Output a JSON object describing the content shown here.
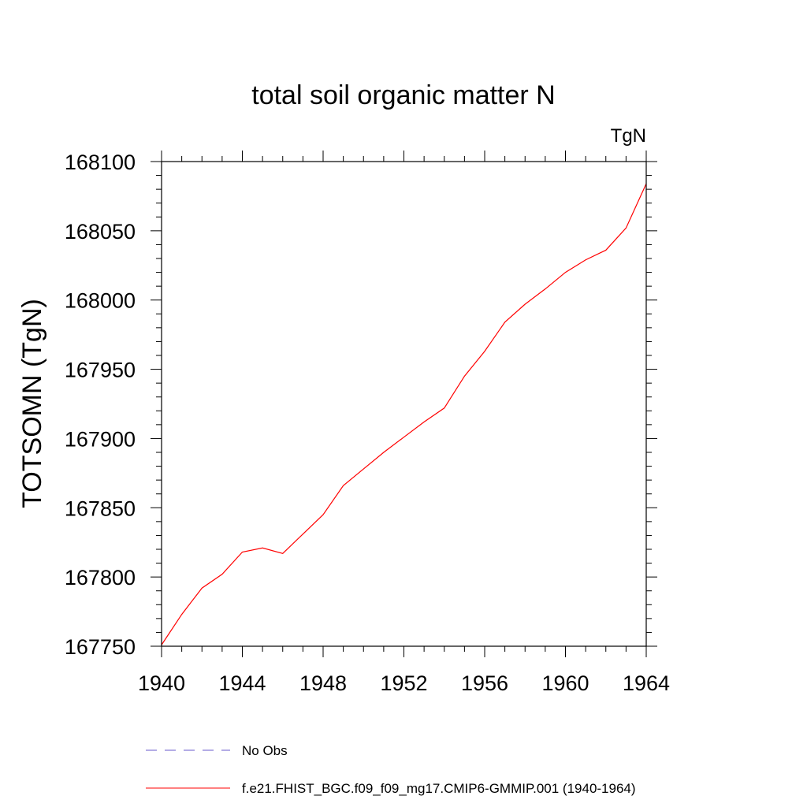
{
  "chart_data": {
    "type": "line",
    "title": "total soil organic matter N",
    "units_label": "TgN",
    "xlabel": "",
    "ylabel": "TOTSOMN  (TgN)",
    "xlim": [
      1940,
      1964
    ],
    "ylim": [
      167750,
      168100
    ],
    "xticks": [
      1940,
      1944,
      1948,
      1952,
      1956,
      1960,
      1964
    ],
    "yticks": [
      167750,
      167800,
      167850,
      167900,
      167950,
      168000,
      168050,
      168100
    ],
    "grid": false,
    "x": [
      1940,
      1941,
      1942,
      1943,
      1944,
      1945,
      1946,
      1947,
      1948,
      1949,
      1950,
      1951,
      1952,
      1953,
      1954,
      1955,
      1956,
      1957,
      1958,
      1959,
      1960,
      1961,
      1962,
      1963,
      1964
    ],
    "series": [
      {
        "name": "f.e21.FHIST_BGC.f09_f09_mg17.CMIP6-GMMIP.001 (1940-1964)",
        "color": "#ff0000",
        "dash": "solid",
        "values": [
          167751,
          167773,
          167792,
          167802,
          167818,
          167821,
          167817,
          167831,
          167845,
          167866,
          167878,
          167890,
          167901,
          167912,
          167922,
          167945,
          167963,
          167984,
          167997,
          168008,
          168020,
          168029,
          168036,
          168052,
          168084
        ]
      }
    ],
    "legend": {
      "position": "bottom",
      "entries": [
        {
          "label": "No Obs",
          "color": "#6a5acd",
          "dash": "dashed"
        },
        {
          "label": "f.e21.FHIST_BGC.f09_f09_mg17.CMIP6-GMMIP.001 (1940-1964)",
          "color": "#ff0000",
          "dash": "solid"
        }
      ]
    }
  }
}
